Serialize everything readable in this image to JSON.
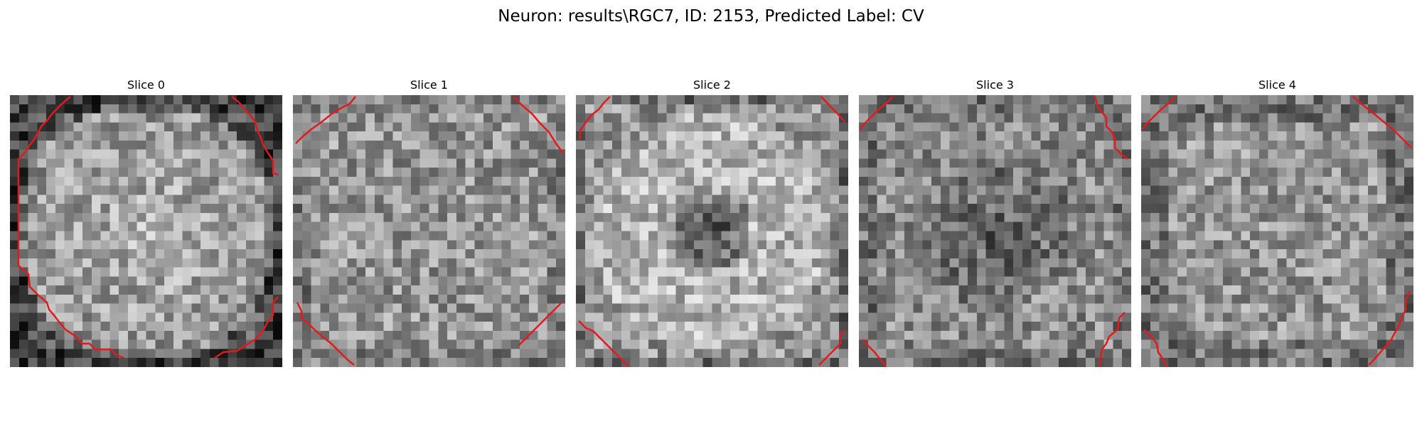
{
  "figure": {
    "title": "Neuron: results\\RGC7, ID: 2153, Predicted Label: CV"
  },
  "slices": [
    {
      "label": "Slice 0",
      "pattern": "ring-bright-center"
    },
    {
      "label": "Slice 1",
      "pattern": "uniform-speckle"
    },
    {
      "label": "Slice 2",
      "pattern": "dark-center-bright-ring"
    },
    {
      "label": "Slice 3",
      "pattern": "dark-center-speckle"
    },
    {
      "label": "Slice 4",
      "pattern": "uniform-speckle-dark-edges"
    }
  ],
  "contour_color": "#e31a1c",
  "colormap": "gray"
}
